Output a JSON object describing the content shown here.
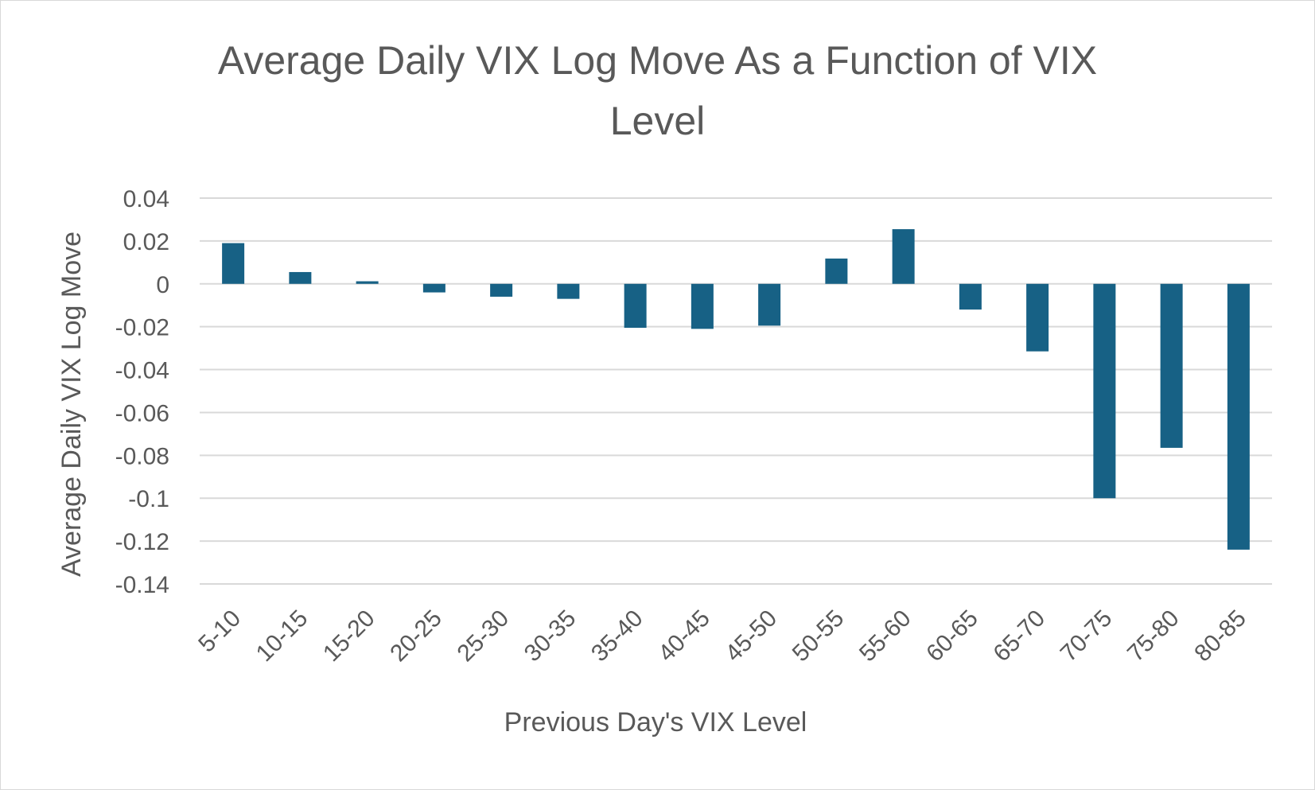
{
  "chart_data": {
    "type": "bar",
    "title_lines": [
      "Average Daily VIX Log Move As a Function of VIX",
      "Level"
    ],
    "title": "Average Daily VIX Log Move As a Function of VIX Level",
    "xlabel": "Previous Day's VIX Level",
    "ylabel": "Average Daily VIX Log Move",
    "categories": [
      "5-10",
      "10-15",
      "15-20",
      "20-25",
      "25-30",
      "30-35",
      "35-40",
      "40-45",
      "45-50",
      "50-55",
      "55-60",
      "60-65",
      "65-70",
      "70-75",
      "75-80",
      "80-85"
    ],
    "values": [
      0.019,
      0.0055,
      0.0012,
      -0.004,
      -0.006,
      -0.007,
      -0.0205,
      -0.021,
      -0.0195,
      0.0118,
      0.0255,
      -0.012,
      -0.0315,
      -0.1,
      -0.0765,
      -0.124
    ],
    "ylim": [
      -0.14,
      0.04
    ],
    "yticks": [
      0.04,
      0.02,
      0,
      -0.02,
      -0.04,
      -0.06,
      -0.08,
      -0.1,
      -0.12,
      -0.14
    ],
    "ytick_labels": [
      "0.04",
      "0.02",
      "0",
      "-0.02",
      "-0.04",
      "-0.06",
      "-0.08",
      "-0.1",
      "-0.12",
      "-0.14"
    ],
    "grid": true,
    "legend": "none",
    "colors": {
      "bar": "#176185",
      "grid": "#d9d9d9",
      "text": "#595959",
      "border": "#d9d9d9"
    }
  }
}
